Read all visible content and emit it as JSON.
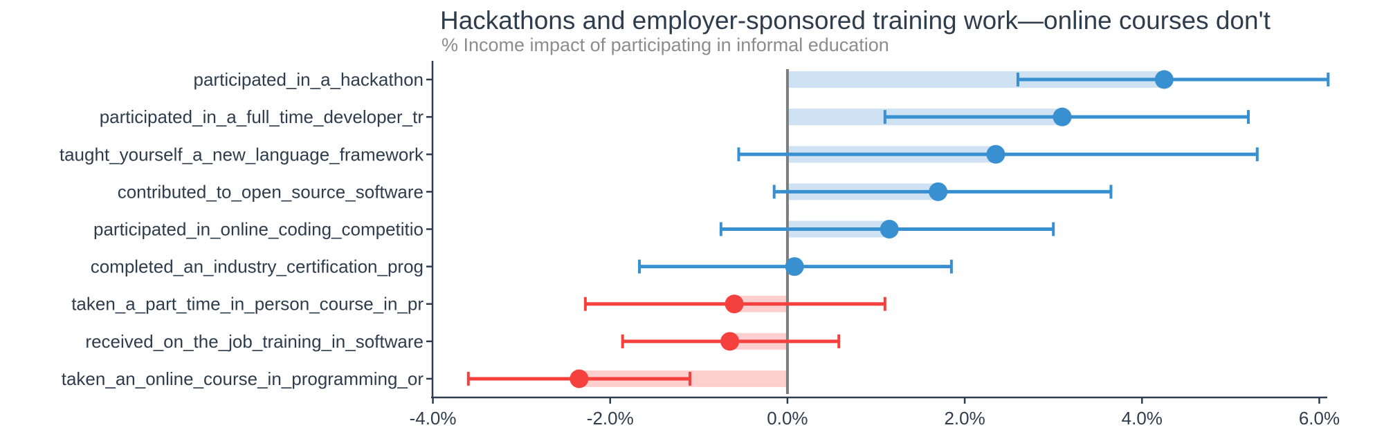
{
  "chart_data": {
    "type": "bar",
    "orientation": "horizontal",
    "title": "Hackathons and employer-sponsored training work—online courses don't",
    "subtitle": "% Income impact of participating in informal education",
    "categories": [
      "participated_in_a_hackathon",
      "participated_in_a_full_time_developer_tr",
      "taught_yourself_a_new_language_framework",
      "contributed_to_open_source_software",
      "participated_in_online_coding_competitio",
      "completed_an_industry_certification_prog",
      "taken_a_part_time_in_person_course_in_pr",
      "received_on_the_job_training_in_software",
      "taken_an_online_course_in_programming_or"
    ],
    "values": [
      4.25,
      3.1,
      2.35,
      1.7,
      1.15,
      0.08,
      -0.6,
      -0.65,
      -2.35
    ],
    "ci_low": [
      2.6,
      1.1,
      -0.55,
      -0.15,
      -0.75,
      -1.67,
      -2.28,
      -1.86,
      -3.6
    ],
    "ci_high": [
      6.1,
      5.2,
      5.3,
      3.65,
      3.0,
      1.85,
      1.1,
      0.58,
      -1.1
    ],
    "unit": "%",
    "xlabel": "",
    "ylabel": "",
    "xlim": [
      -4.02,
      6.09
    ],
    "x_ticks": [
      -4,
      -2,
      0,
      2,
      4,
      6
    ],
    "x_tick_labels": [
      "-4.0%",
      "-2.0%",
      "0.0%",
      "2.0%",
      "4.0%",
      "6.0%"
    ],
    "grid": false,
    "legend": "none",
    "zero_line": true,
    "colors": {
      "positive": "#3890d0",
      "positive_fill": "#cfe2f3",
      "negative": "#f5413d",
      "negative_fill": "#fdd0cf",
      "zero_line": "#7c7c7c",
      "axis": "#2e3d4d",
      "tick_label": "#2e3d4d",
      "title": "#2e3d4d",
      "subtitle": "#8c8c8c",
      "background": "#ffffff"
    }
  }
}
